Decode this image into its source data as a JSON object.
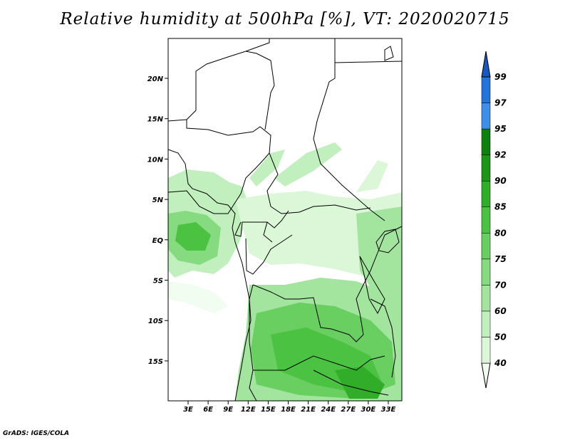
{
  "title": "Relative humidity at 500hPa [%], VT: 2020020715",
  "credit": "GrADS: IGES/COLA",
  "map": {
    "lat_ticks": [
      "20N",
      "15N",
      "10N",
      "5N",
      "EQ",
      "5S",
      "10S",
      "15S"
    ],
    "lon_ticks": [
      "3E",
      "6E",
      "9E",
      "12E",
      "15E",
      "18E",
      "21E",
      "24E",
      "27E",
      "30E",
      "33E"
    ]
  },
  "colorbar": {
    "levels": [
      "40",
      "50",
      "60",
      "70",
      "75",
      "80",
      "85",
      "90",
      "92",
      "95",
      "97",
      "99"
    ],
    "colors": [
      "#f0fdf0",
      "#dbf7d8",
      "#c1efbd",
      "#a3e59e",
      "#86da7f",
      "#68cf60",
      "#4cc243",
      "#31ad2a",
      "#1d9618",
      "#0f800d",
      "#3f8ee8",
      "#2474db",
      "#1857bd"
    ],
    "range": "40–99 %"
  }
}
